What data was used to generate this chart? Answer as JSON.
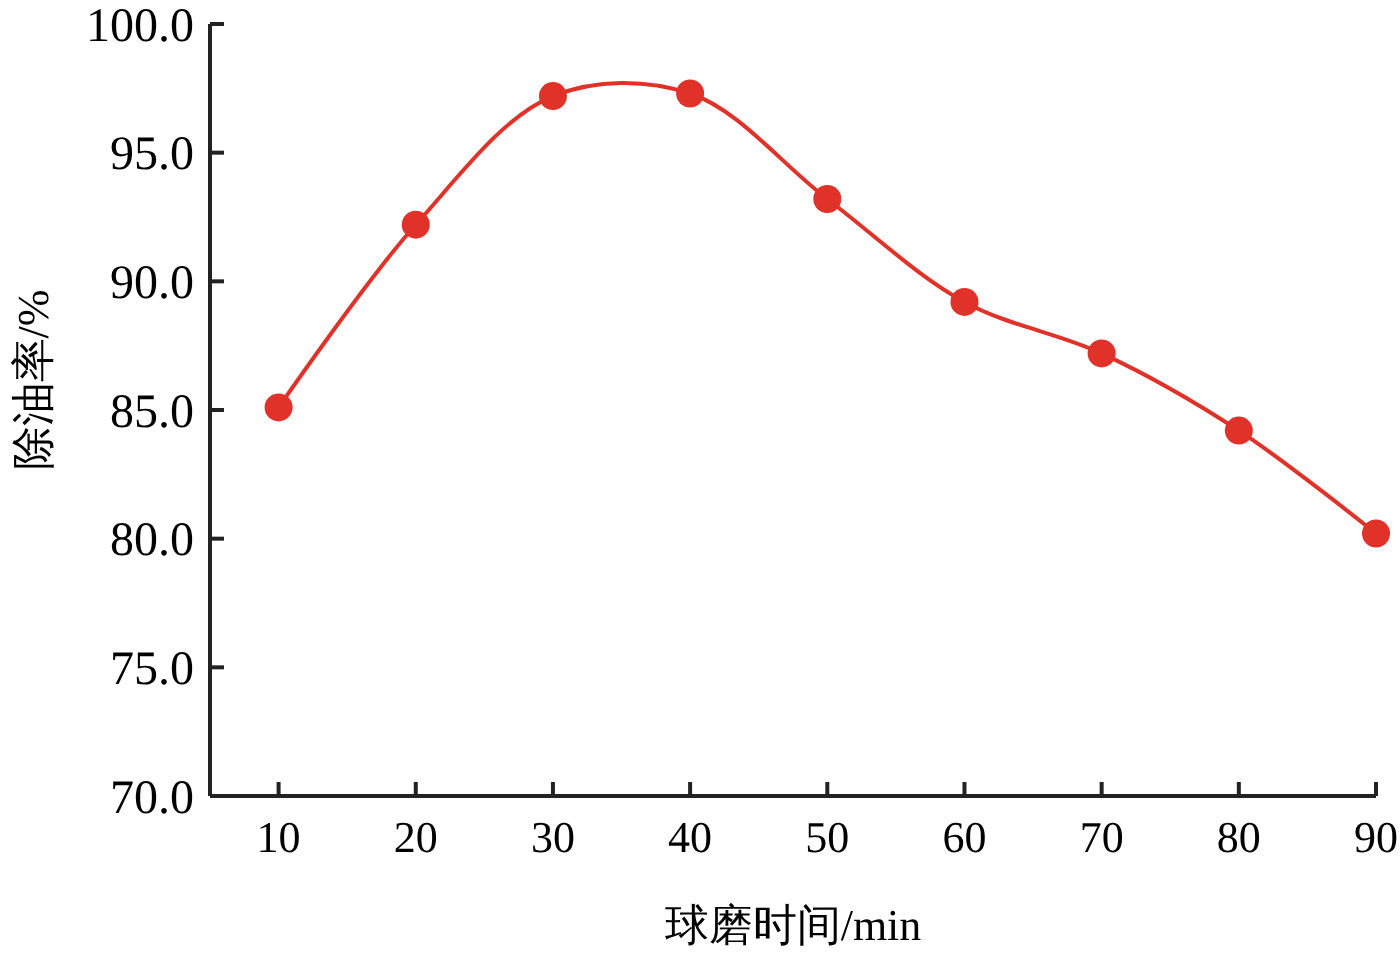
{
  "chart_data": {
    "type": "line",
    "xlabel": "球磨时间/min",
    "ylabel": "除油率/%",
    "x": [
      10,
      20,
      30,
      40,
      50,
      60,
      70,
      80,
      90
    ],
    "series": [
      {
        "color": "#e03228",
        "values": [
          85.1,
          92.2,
          97.2,
          97.3,
          93.2,
          89.2,
          87.2,
          84.2,
          80.2
        ]
      }
    ],
    "xlim": [
      5,
      90
    ],
    "xticks": [
      10,
      20,
      30,
      40,
      50,
      60,
      70,
      80,
      90
    ],
    "ylim": [
      70,
      100
    ],
    "yticks": [
      {
        "value": 70,
        "label": "70.0"
      },
      {
        "value": 75,
        "label": "75.0"
      },
      {
        "value": 80,
        "label": "80.0"
      },
      {
        "value": 85,
        "label": "85.0"
      },
      {
        "value": 90,
        "label": "90.0"
      },
      {
        "value": 95,
        "label": "95.0"
      },
      {
        "value": 100,
        "label": "100.0"
      }
    ],
    "marker": "circle",
    "line_style": "solid"
  }
}
